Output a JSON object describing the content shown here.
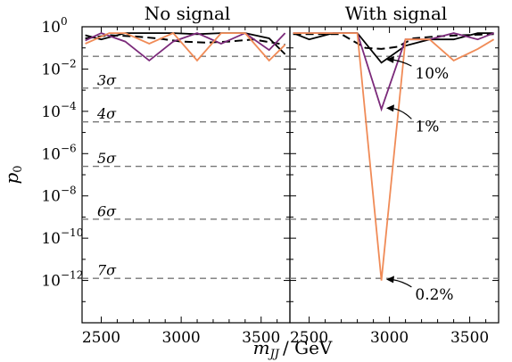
{
  "chart_data": [
    {
      "title": "No signal",
      "type": "line",
      "xlim": [
        2380,
        3680
      ],
      "ylim_log10": [
        -14,
        0
      ],
      "yscale": "log",
      "xticks": [
        2500,
        3000,
        3500
      ],
      "series": [
        {
          "color": "#000000",
          "dash": "dashed",
          "x": [
            2400,
            2550,
            2700,
            2850,
            3000,
            3150,
            3300,
            3450,
            3650
          ],
          "y_log10": [
            -0.55,
            -0.4,
            -0.45,
            -0.55,
            -0.7,
            -0.75,
            -0.7,
            -0.6,
            -0.85
          ]
        },
        {
          "color": "#000000",
          "dash": "solid",
          "x": [
            2400,
            2500,
            2650,
            2800,
            2950,
            3100,
            3250,
            3400,
            3550,
            3650
          ],
          "y_log10": [
            -0.4,
            -0.6,
            -0.3,
            -0.3,
            -0.3,
            -0.35,
            -0.3,
            -0.3,
            -0.55,
            -1.3
          ]
        },
        {
          "color": "#7b2a7a",
          "dash": "solid",
          "x": [
            2400,
            2500,
            2650,
            2800,
            2950,
            3100,
            3250,
            3400,
            3550,
            3650
          ],
          "y_log10": [
            -0.65,
            -0.3,
            -0.7,
            -1.6,
            -0.7,
            -0.3,
            -0.8,
            -0.3,
            -1.1,
            -0.3
          ]
        },
        {
          "color": "#f08b57",
          "dash": "solid",
          "x": [
            2400,
            2550,
            2650,
            2800,
            2950,
            3100,
            3250,
            3400,
            3550,
            3650
          ],
          "y_log10": [
            -0.8,
            -0.3,
            -0.3,
            -0.8,
            -0.3,
            -1.6,
            -0.3,
            -0.3,
            -1.6,
            -0.85
          ]
        }
      ],
      "sigma_lines_log10": [
        -1.4,
        -2.9,
        -4.5,
        -6.6,
        -9.1,
        -11.9
      ],
      "sigma_labels": [
        {
          "label": "3σ",
          "y_log10": -2.5
        },
        {
          "label": "4σ",
          "y_log10": -4.1
        },
        {
          "label": "5σ",
          "y_log10": -6.2
        },
        {
          "label": "6σ",
          "y_log10": -8.7
        },
        {
          "label": "7σ",
          "y_log10": -11.5
        }
      ]
    },
    {
      "title": "With signal",
      "type": "line",
      "xlim": [
        2380,
        3680
      ],
      "ylim_log10": [
        -14,
        0
      ],
      "yscale": "log",
      "xticks": [
        2500,
        3000,
        3500
      ],
      "series": [
        {
          "color": "#000000",
          "dash": "dashed",
          "x": [
            2400,
            2550,
            2700,
            2850,
            2950,
            3050,
            3150,
            3300,
            3450,
            3650
          ],
          "y_log10": [
            -0.35,
            -0.35,
            -0.35,
            -1.0,
            -1.05,
            -0.95,
            -0.55,
            -0.45,
            -0.4,
            -0.35
          ]
        },
        {
          "color": "#000000",
          "dash": "solid",
          "x": [
            2400,
            2500,
            2650,
            2800,
            2950,
            3100,
            3250,
            3400,
            3550,
            3650
          ],
          "y_log10": [
            -0.3,
            -0.6,
            -0.3,
            -0.3,
            -1.7,
            -0.9,
            -0.6,
            -0.6,
            -0.3,
            -0.3
          ]
        },
        {
          "color": "#7b2a7a",
          "dash": "solid",
          "x": [
            2400,
            2500,
            2650,
            2800,
            2950,
            3100,
            3250,
            3400,
            3550,
            3650
          ],
          "y_log10": [
            -0.3,
            -0.3,
            -0.3,
            -0.3,
            -3.9,
            -0.6,
            -0.6,
            -0.3,
            -0.6,
            -0.3
          ]
        },
        {
          "color": "#f08b57",
          "dash": "solid",
          "x": [
            2400,
            2500,
            2650,
            2800,
            2950,
            3100,
            3250,
            3400,
            3550,
            3650
          ],
          "y_log10": [
            -0.3,
            -0.3,
            -0.3,
            -0.3,
            -12.0,
            -0.6,
            -0.6,
            -1.6,
            -1.05,
            -0.6
          ]
        }
      ],
      "sigma_lines_log10": [
        -1.4,
        -2.9,
        -4.5,
        -6.6,
        -9.1,
        -11.9
      ],
      "annotations": [
        {
          "text": "10%",
          "arrow_to": [
            2980,
            -1.55
          ],
          "text_at": [
            3160,
            -2.45
          ]
        },
        {
          "text": "1%",
          "arrow_to": [
            2980,
            -3.85
          ],
          "text_at": [
            3160,
            -4.95
          ]
        },
        {
          "text": "0.2%",
          "arrow_to": [
            2980,
            -11.95
          ],
          "text_at": [
            3160,
            -12.9
          ]
        }
      ]
    }
  ],
  "axes": {
    "ylabel": "p",
    "ylabel_sub": "0",
    "xlabel_var": "m",
    "xlabel_sub": "JJ",
    "xlabel_unit": "/ GeV",
    "y_tick_labels": [
      {
        "label": "10",
        "exp": "0",
        "log10": 0
      },
      {
        "label": "10",
        "exp": "−2",
        "log10": -2
      },
      {
        "label": "10",
        "exp": "−4",
        "log10": -4
      },
      {
        "label": "10",
        "exp": "−6",
        "log10": -6
      },
      {
        "label": "10",
        "exp": "−8",
        "log10": -8
      },
      {
        "label": "10",
        "exp": "−10",
        "log10": -10
      },
      {
        "label": "10",
        "exp": "−12",
        "log10": -12
      }
    ],
    "x_tick_labels": [
      "2500",
      "3000",
      "3500"
    ]
  }
}
